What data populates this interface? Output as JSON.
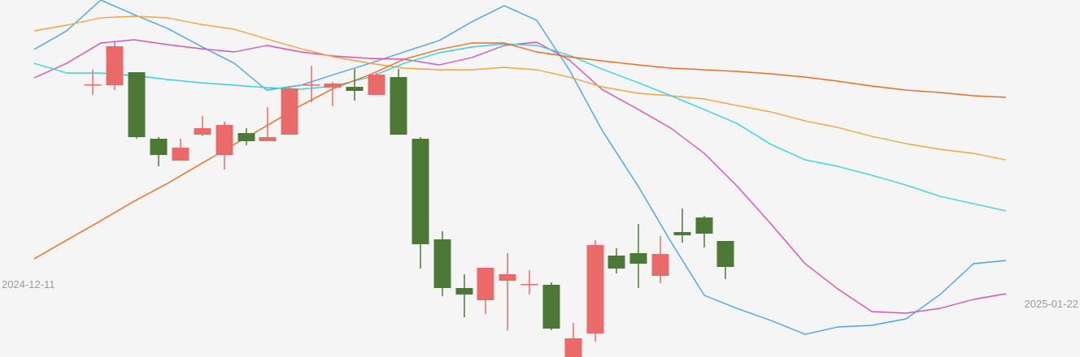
{
  "chart_data": {
    "type": "candlestick",
    "x_start_label": "2024-12-11",
    "x_end_label": "2025-01-22",
    "y_range": [
      0,
      440
    ],
    "y_inverted_note": "values are relative price levels; larger = higher price",
    "colors": {
      "background": "#f5f5f5",
      "up": "#ea6a6a",
      "down": "#4c7a36",
      "ma_orange_dark": "#f26b1d",
      "ma_orange_light": "#f5a23a",
      "ma_cyan": "#2fd3e0",
      "ma_magenta": "#dd4fb8",
      "ma_blue": "#4aa3f0",
      "label": "#9a9a9a"
    },
    "candles": [
      {
        "x": 114,
        "open": 336,
        "close": 336,
        "high": 354,
        "low": 323
      },
      {
        "x": 141,
        "open": 335,
        "close": 383,
        "high": 388,
        "low": 329
      },
      {
        "x": 168,
        "open": 351,
        "close": 271,
        "high": 351,
        "low": 269
      },
      {
        "x": 195,
        "open": 269,
        "close": 249,
        "high": 271,
        "low": 235
      },
      {
        "x": 222,
        "open": 242,
        "close": 258,
        "high": 269,
        "low": 242
      },
      {
        "x": 249,
        "open": 274,
        "close": 282,
        "high": 297,
        "low": 272
      },
      {
        "x": 276,
        "open": 249,
        "close": 286,
        "high": 290,
        "low": 231
      },
      {
        "x": 303,
        "open": 276,
        "close": 266,
        "high": 282,
        "low": 261
      },
      {
        "x": 329,
        "open": 266,
        "close": 271,
        "high": 308,
        "low": 266
      },
      {
        "x": 356,
        "open": 274,
        "close": 331,
        "high": 334,
        "low": 274
      },
      {
        "x": 383,
        "open": 335,
        "close": 336,
        "high": 359,
        "low": 314
      },
      {
        "x": 409,
        "open": 332,
        "close": 337,
        "high": 339,
        "low": 309
      },
      {
        "x": 436,
        "open": 333,
        "close": 328,
        "high": 355,
        "low": 316
      },
      {
        "x": 463,
        "open": 323,
        "close": 348,
        "high": 350,
        "low": 323
      },
      {
        "x": 490,
        "open": 345,
        "close": 274,
        "high": 355,
        "low": 274
      },
      {
        "x": 517,
        "open": 269,
        "close": 139,
        "high": 271,
        "low": 109
      },
      {
        "x": 544,
        "open": 145,
        "close": 85,
        "high": 155,
        "low": 75
      },
      {
        "x": 571,
        "open": 85,
        "close": 77,
        "high": 102,
        "low": 49
      },
      {
        "x": 597,
        "open": 70,
        "close": 110,
        "high": 110,
        "low": 53
      },
      {
        "x": 624,
        "open": 94,
        "close": 102,
        "high": 128,
        "low": 33
      },
      {
        "x": 651,
        "open": 90,
        "close": 90,
        "high": 107,
        "low": 77
      },
      {
        "x": 678,
        "open": 89,
        "close": 35,
        "high": 92,
        "low": 33
      },
      {
        "x": 705,
        "open": 0,
        "close": 23,
        "high": 42,
        "low": 0
      },
      {
        "x": 732,
        "open": 29,
        "close": 138,
        "high": 144,
        "low": 19
      },
      {
        "x": 758,
        "open": 125,
        "close": 109,
        "high": 134,
        "low": 103
      },
      {
        "x": 785,
        "open": 128,
        "close": 115,
        "high": 164,
        "low": 85
      },
      {
        "x": 812,
        "open": 100,
        "close": 127,
        "high": 149,
        "low": 91
      },
      {
        "x": 839,
        "open": 154,
        "close": 150,
        "high": 183,
        "low": 141
      },
      {
        "x": 866,
        "open": 172,
        "close": 152,
        "high": 174,
        "low": 135
      },
      {
        "x": 892,
        "open": 143,
        "close": 111,
        "high": 143,
        "low": 96
      }
    ],
    "lines": [
      {
        "color_key": "ma_blue",
        "points": [
          [
            42,
            379
          ],
          [
            82,
            402
          ],
          [
            124,
            440
          ],
          [
            165,
            422
          ],
          [
            206,
            405
          ],
          [
            247,
            383
          ],
          [
            288,
            362
          ],
          [
            328,
            329
          ],
          [
            370,
            335
          ],
          [
            410,
            348
          ],
          [
            455,
            362
          ],
          [
            497,
            376
          ],
          [
            540,
            390
          ],
          [
            580,
            413
          ],
          [
            620,
            433
          ],
          [
            660,
            415
          ],
          [
            700,
            354
          ],
          [
            740,
            280
          ],
          [
            785,
            210
          ],
          [
            825,
            142
          ],
          [
            866,
            76
          ],
          [
            906,
            60
          ],
          [
            948,
            45
          ],
          [
            990,
            28
          ],
          [
            1030,
            37
          ],
          [
            1072,
            39
          ],
          [
            1114,
            47
          ],
          [
            1156,
            77
          ],
          [
            1197,
            115
          ],
          [
            1237,
            119
          ]
        ]
      },
      {
        "color_key": "ma_magenta",
        "points": [
          [
            42,
            344
          ],
          [
            82,
            362
          ],
          [
            124,
            387
          ],
          [
            165,
            391
          ],
          [
            206,
            385
          ],
          [
            247,
            380
          ],
          [
            288,
            376
          ],
          [
            328,
            384
          ],
          [
            370,
            376
          ],
          [
            410,
            371
          ],
          [
            455,
            368
          ],
          [
            497,
            367
          ],
          [
            540,
            360
          ],
          [
            580,
            369
          ],
          [
            620,
            384
          ],
          [
            660,
            388
          ],
          [
            700,
            366
          ],
          [
            740,
            330
          ],
          [
            785,
            305
          ],
          [
            825,
            282
          ],
          [
            866,
            251
          ],
          [
            906,
            211
          ],
          [
            948,
            164
          ],
          [
            990,
            115
          ],
          [
            1030,
            84
          ],
          [
            1072,
            56
          ],
          [
            1114,
            54
          ],
          [
            1156,
            60
          ],
          [
            1197,
            71
          ],
          [
            1237,
            78
          ]
        ]
      },
      {
        "color_key": "ma_orange_light",
        "points": [
          [
            42,
            402
          ],
          [
            82,
            409
          ],
          [
            124,
            418
          ],
          [
            165,
            420
          ],
          [
            206,
            418
          ],
          [
            247,
            410
          ],
          [
            288,
            404
          ],
          [
            328,
            392
          ],
          [
            370,
            380
          ],
          [
            410,
            370
          ],
          [
            455,
            362
          ],
          [
            497,
            356
          ],
          [
            540,
            354
          ],
          [
            580,
            354
          ],
          [
            620,
            357
          ],
          [
            660,
            354
          ],
          [
            700,
            345
          ],
          [
            740,
            333
          ],
          [
            785,
            325
          ],
          [
            825,
            322
          ],
          [
            866,
            318
          ],
          [
            906,
            310
          ],
          [
            948,
            302
          ],
          [
            990,
            291
          ],
          [
            1030,
            283
          ],
          [
            1072,
            272
          ],
          [
            1114,
            263
          ],
          [
            1156,
            256
          ],
          [
            1197,
            251
          ],
          [
            1237,
            243
          ]
        ]
      },
      {
        "color_key": "ma_cyan",
        "points": [
          [
            42,
            362
          ],
          [
            82,
            350
          ],
          [
            124,
            350
          ],
          [
            165,
            347
          ],
          [
            206,
            342
          ],
          [
            247,
            338
          ],
          [
            288,
            335
          ],
          [
            328,
            332
          ],
          [
            370,
            330
          ],
          [
            410,
            334
          ],
          [
            455,
            345
          ],
          [
            497,
            362
          ],
          [
            540,
            375
          ],
          [
            580,
            382
          ],
          [
            620,
            386
          ],
          [
            660,
            384
          ],
          [
            700,
            372
          ],
          [
            740,
            355
          ],
          [
            785,
            338
          ],
          [
            825,
            322
          ],
          [
            866,
            305
          ],
          [
            906,
            288
          ],
          [
            948,
            262
          ],
          [
            990,
            243
          ],
          [
            1030,
            235
          ],
          [
            1072,
            224
          ],
          [
            1114,
            212
          ],
          [
            1156,
            198
          ],
          [
            1197,
            189
          ],
          [
            1237,
            180
          ]
        ]
      },
      {
        "color_key": "ma_orange_dark",
        "points": [
          [
            42,
            121
          ],
          [
            82,
            144
          ],
          [
            124,
            168
          ],
          [
            165,
            192
          ],
          [
            206,
            214
          ],
          [
            247,
            238
          ],
          [
            288,
            262
          ],
          [
            328,
            285
          ],
          [
            370,
            310
          ],
          [
            410,
            331
          ],
          [
            455,
            348
          ],
          [
            497,
            367
          ],
          [
            540,
            379
          ],
          [
            580,
            387
          ],
          [
            620,
            387
          ],
          [
            660,
            376
          ],
          [
            700,
            370
          ],
          [
            740,
            365
          ],
          [
            785,
            360
          ],
          [
            825,
            356
          ],
          [
            866,
            354
          ],
          [
            906,
            352
          ],
          [
            948,
            349
          ],
          [
            990,
            345
          ],
          [
            1030,
            340
          ],
          [
            1072,
            334
          ],
          [
            1114,
            329
          ],
          [
            1156,
            326
          ],
          [
            1197,
            322
          ],
          [
            1237,
            320
          ]
        ]
      }
    ]
  }
}
